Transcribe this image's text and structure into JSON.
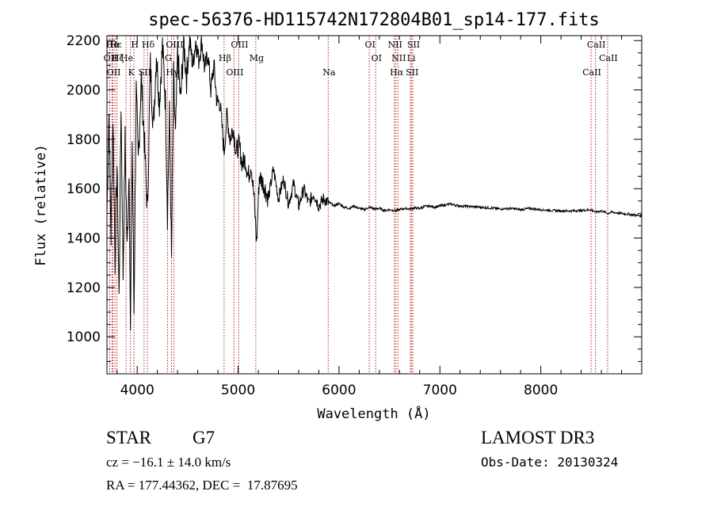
{
  "chart_data": {
    "type": "line",
    "title": "spec-56376-HD115742N172804B01_sp14-177.fits",
    "xlabel": "Wavelength (Å)",
    "ylabel": "Flux (relative)",
    "xlim": [
      3700,
      9000
    ],
    "ylim": [
      850,
      2220
    ],
    "x_ticks": [
      4000,
      5000,
      6000,
      7000,
      8000
    ],
    "y_ticks": [
      1000,
      1200,
      1400,
      1600,
      1800,
      2000,
      2200
    ],
    "line_color": "#000000",
    "marker_color": "#b22222",
    "series": [
      {
        "name": "flux",
        "x": [
          3700,
          3720,
          3740,
          3760,
          3780,
          3800,
          3820,
          3840,
          3860,
          3880,
          3900,
          3920,
          3933,
          3950,
          3968,
          3990,
          4010,
          4040,
          4070,
          4101,
          4130,
          4160,
          4190,
          4220,
          4250,
          4280,
          4300,
          4320,
          4340,
          4360,
          4380,
          4400,
          4430,
          4460,
          4490,
          4520,
          4550,
          4580,
          4610,
          4640,
          4670,
          4700,
          4730,
          4760,
          4790,
          4820,
          4861,
          4890,
          4920,
          4950,
          4980,
          5010,
          5040,
          5070,
          5100,
          5130,
          5160,
          5183,
          5210,
          5250,
          5300,
          5350,
          5400,
          5450,
          5500,
          5550,
          5600,
          5650,
          5700,
          5750,
          5800,
          5850,
          5890,
          5920,
          5950,
          6000,
          6050,
          6100,
          6150,
          6200,
          6250,
          6300,
          6350,
          6400,
          6450,
          6500,
          6563,
          6600,
          6650,
          6700,
          6750,
          6800,
          6850,
          6900,
          6950,
          7000,
          7100,
          7200,
          7300,
          7400,
          7500,
          7600,
          7700,
          7800,
          7900,
          8000,
          8100,
          8200,
          8300,
          8400,
          8498,
          8542,
          8600,
          8662,
          8700,
          8800,
          8900,
          9000
        ],
        "values": [
          1500,
          1900,
          1400,
          1900,
          1300,
          1700,
          1150,
          1950,
          1250,
          1800,
          1350,
          1700,
          1000,
          1800,
          1100,
          2000,
          1700,
          2050,
          1800,
          1500,
          2100,
          1850,
          2150,
          1950,
          2180,
          1950,
          1500,
          1900,
          1300,
          2050,
          1800,
          2150,
          1950,
          2200,
          2050,
          2200,
          2100,
          2200,
          2120,
          2200,
          2080,
          2150,
          2000,
          2100,
          1950,
          1950,
          1750,
          1900,
          1800,
          1850,
          1750,
          1780,
          1700,
          1720,
          1650,
          1700,
          1550,
          1380,
          1650,
          1620,
          1560,
          1680,
          1560,
          1640,
          1540,
          1620,
          1530,
          1600,
          1540,
          1580,
          1530,
          1560,
          1545,
          1540,
          1530,
          1540,
          1525,
          1520,
          1530,
          1520,
          1515,
          1525,
          1518,
          1520,
          1512,
          1515,
          1510,
          1515,
          1520,
          1518,
          1522,
          1520,
          1528,
          1530,
          1525,
          1530,
          1538,
          1530,
          1528,
          1525,
          1522,
          1518,
          1520,
          1515,
          1520,
          1515,
          1512,
          1510,
          1510,
          1512,
          1515,
          1505,
          1510,
          1500,
          1505,
          1500,
          1495,
          1490
        ]
      }
    ],
    "lines": [
      {
        "label": "Hα",
        "x": 3750
      },
      {
        "label": "OII",
        "x": 3727
      },
      {
        "label": "OII",
        "x": 3760
      },
      {
        "label": "Hε",
        "x": 3780
      },
      {
        "label": "Hζ",
        "x": 3800
      },
      {
        "label": "K",
        "x": 3933
      },
      {
        "label": "H",
        "x": 3968
      },
      {
        "label": "He",
        "x": 3889
      },
      {
        "label": "SII",
        "x": 4068
      },
      {
        "label": "Hδ",
        "x": 4101
      },
      {
        "label": "G",
        "x": 4300
      },
      {
        "label": "Hγ",
        "x": 4340
      },
      {
        "label": "OIII",
        "x": 4363
      },
      {
        "label": "Hβ",
        "x": 4861
      },
      {
        "label": "OIII",
        "x": 4959
      },
      {
        "label": "OIII",
        "x": 5007
      },
      {
        "label": "Mg",
        "x": 5175
      },
      {
        "label": "Na",
        "x": 5893
      },
      {
        "label": "OI",
        "x": 6300
      },
      {
        "label": "OI",
        "x": 6364
      },
      {
        "label": "Hα",
        "x": 6563
      },
      {
        "label": "NII",
        "x": 6548
      },
      {
        "label": "NII",
        "x": 6584
      },
      {
        "label": "SII",
        "x": 6717
      },
      {
        "label": "SII",
        "x": 6731
      },
      {
        "label": "Li",
        "x": 6708
      },
      {
        "label": "CaII",
        "x": 8498
      },
      {
        "label": "CaII",
        "x": 8542
      },
      {
        "label": "CaII",
        "x": 8662
      }
    ]
  },
  "info": {
    "object_class": "STAR",
    "subclass": "G7",
    "survey": "LAMOST DR3",
    "cz": "cz = −16.1 ± 14.0 km/s",
    "obs_date": "Obs-Date: 20130324",
    "coords": "RA = 177.44362, DEC =  17.87695"
  }
}
